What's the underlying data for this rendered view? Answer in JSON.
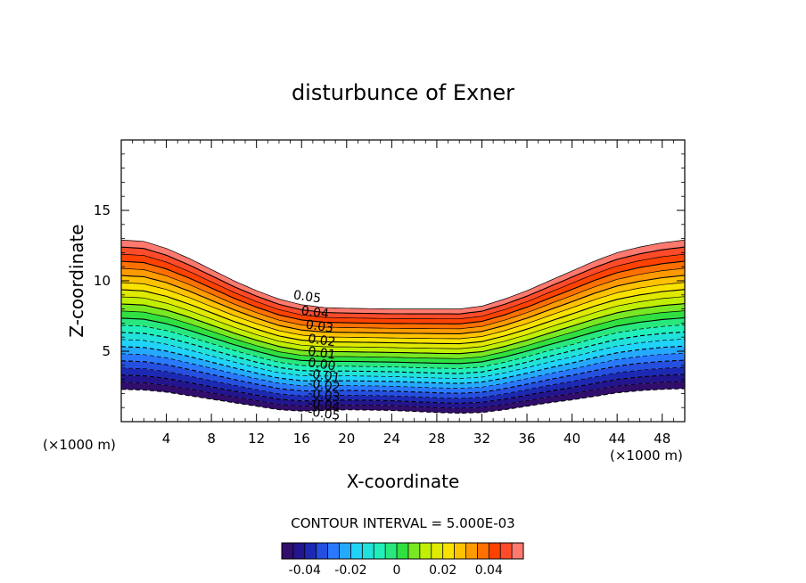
{
  "chart_data": {
    "type": "contour",
    "title": "disturbunce of Exner",
    "xlabel": "X-coordinate",
    "ylabel": "Z-coordinate",
    "x_unit": "(×1000 m)",
    "z_unit": "(×1000 m)",
    "xlim": [
      0,
      50
    ],
    "ylim": [
      0,
      20
    ],
    "x_ticks": [
      4,
      8,
      12,
      16,
      20,
      24,
      28,
      32,
      36,
      40,
      44,
      48
    ],
    "y_ticks": [
      5,
      10,
      15
    ],
    "contour_interval_text": "CONTOUR INTERVAL = 5.000E-03",
    "contour_interval": 0.005,
    "value_range": [
      -0.05,
      0.055
    ],
    "contour_labels": [
      "0.05",
      "0.04",
      "0.03",
      "0.02",
      "0.01",
      "0.00",
      "-0.01",
      "-0.02",
      "-0.03",
      "-0.04",
      "-0.05"
    ],
    "contour_label_positions": [
      {
        "text": "0.05",
        "x": 16.5,
        "z": 8.9
      },
      {
        "text": "0.04",
        "x": 17.2,
        "z": 7.8
      },
      {
        "text": "0.03",
        "x": 17.6,
        "z": 6.8
      },
      {
        "text": "0.02",
        "x": 17.8,
        "z": 5.8
      },
      {
        "text": "0.01",
        "x": 17.8,
        "z": 4.9
      },
      {
        "text": "0.00",
        "x": 17.8,
        "z": 4.1
      },
      {
        "text": "-0.01",
        "x": 18.0,
        "z": 3.3
      },
      {
        "text": "-0.02",
        "x": 18.0,
        "z": 2.6
      },
      {
        "text": "-0.03",
        "x": 18.0,
        "z": 1.9
      },
      {
        "text": "-0.04",
        "x": 18.0,
        "z": 1.2
      },
      {
        "text": "-0.05",
        "x": 18.0,
        "z": 0.6
      }
    ],
    "top_boundary_z": [
      [
        0,
        12.9
      ],
      [
        2,
        12.8
      ],
      [
        4,
        12.3
      ],
      [
        6,
        11.6
      ],
      [
        8,
        10.8
      ],
      [
        10,
        10.0
      ],
      [
        12,
        9.3
      ],
      [
        14,
        8.7
      ],
      [
        16,
        8.3
      ],
      [
        18,
        8.1
      ],
      [
        20,
        8.05
      ],
      [
        24,
        8.0
      ],
      [
        28,
        8.0
      ],
      [
        30,
        8.0
      ],
      [
        32,
        8.2
      ],
      [
        34,
        8.7
      ],
      [
        36,
        9.3
      ],
      [
        38,
        10.0
      ],
      [
        40,
        10.7
      ],
      [
        42,
        11.4
      ],
      [
        44,
        12.0
      ],
      [
        46,
        12.4
      ],
      [
        48,
        12.7
      ],
      [
        50,
        12.9
      ]
    ],
    "bottom_boundary_z": [
      [
        0,
        2.3
      ],
      [
        2,
        2.25
      ],
      [
        4,
        2.1
      ],
      [
        6,
        1.85
      ],
      [
        8,
        1.6
      ],
      [
        10,
        1.35
      ],
      [
        12,
        1.1
      ],
      [
        14,
        0.85
      ],
      [
        16,
        0.75
      ],
      [
        18,
        0.8
      ],
      [
        20,
        0.85
      ],
      [
        24,
        0.8
      ],
      [
        28,
        0.65
      ],
      [
        30,
        0.6
      ],
      [
        32,
        0.65
      ],
      [
        34,
        0.85
      ],
      [
        36,
        1.1
      ],
      [
        38,
        1.35
      ],
      [
        40,
        1.55
      ],
      [
        42,
        1.8
      ],
      [
        44,
        2.05
      ],
      [
        46,
        2.2
      ],
      [
        48,
        2.3
      ],
      [
        50,
        2.35
      ]
    ],
    "colorbar": {
      "range": [
        -0.05,
        0.055
      ],
      "tick_values": [
        -0.04,
        -0.02,
        0,
        0.02,
        0.04
      ],
      "tick_labels": [
        "-0.04",
        "-0.02",
        "0",
        "0.02",
        "0.04"
      ]
    },
    "colormap": [
      "#3a0a5c",
      "#1a1aa0",
      "#2a6aff",
      "#20d0ff",
      "#20f0c0",
      "#30e040",
      "#c8f000",
      "#ffe000",
      "#ff9000",
      "#ff3000",
      "#ff9090"
    ],
    "grid": false,
    "legend": "colorbar-bottom"
  }
}
